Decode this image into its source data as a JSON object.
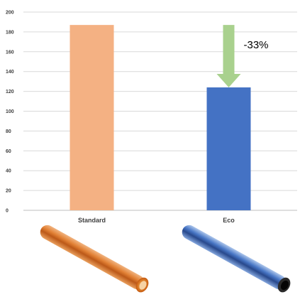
{
  "chart_data": {
    "type": "bar",
    "categories": [
      "Standard",
      "Eco"
    ],
    "values": [
      187,
      124
    ],
    "colors": [
      "#F4B183",
      "#4472C4"
    ],
    "ylim": [
      0,
      200
    ],
    "yticks": [
      0,
      20,
      40,
      60,
      80,
      100,
      120,
      140,
      160,
      180,
      200
    ],
    "grid": true,
    "annotation": {
      "text": "-33%",
      "arrow_from": 187,
      "arrow_to": 124,
      "arrow_color": "#A9D18E",
      "category": "Eco"
    },
    "images": [
      {
        "category": "Standard",
        "icon": "orange-pipe-icon",
        "color": "#C55A11"
      },
      {
        "category": "Eco",
        "icon": "blue-pipe-icon",
        "color": "#2E5FA8"
      }
    ]
  }
}
